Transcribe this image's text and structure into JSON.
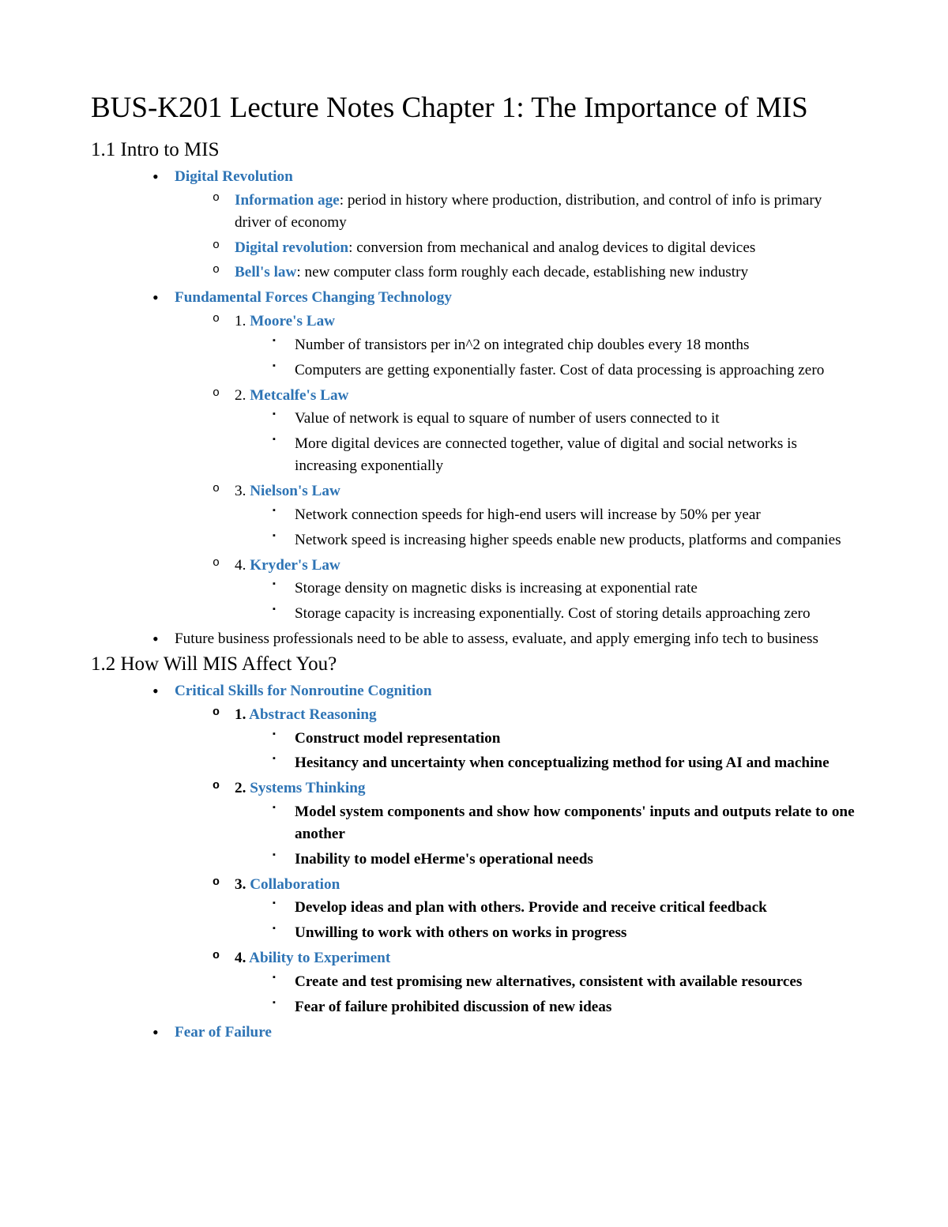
{
  "title": "BUS-K201 Lecture Notes Chapter 1: The Importance of MIS",
  "colors": {
    "term": "#2e74b5",
    "text": "#000000",
    "background": "#ffffff"
  },
  "typography": {
    "body_font": "Times New Roman",
    "h1_fontsize": 37,
    "h2_fontsize": 25,
    "body_fontsize": 19.2
  },
  "sections": [
    {
      "heading": "1.1 Intro to MIS",
      "items": [
        {
          "term": "Digital Revolution",
          "bold_children": false,
          "children": [
            {
              "term": "Information age",
              "rest": ": period in history where production, distribution, and control of info is primary driver of economy"
            },
            {
              "term": "Digital revolution",
              "rest": ": conversion from mechanical and analog devices to digital devices"
            },
            {
              "term": "Bell's law",
              "rest": ": new computer class form roughly each decade, establishing new industry"
            }
          ]
        },
        {
          "term": "Fundamental Forces Changing Technology",
          "bold_children": false,
          "children": [
            {
              "prefix": "1. ",
              "term": "Moore's Law",
              "sub": [
                "Number of transistors per in^2 on integrated chip doubles every 18 months",
                "Computers are getting exponentially faster. Cost of data processing is approaching zero"
              ]
            },
            {
              "prefix": "2. ",
              "term": "Metcalfe's Law",
              "sub": [
                "Value of network is equal to square of number of users connected to it",
                "More digital devices are connected together, value of digital and social networks is increasing exponentially"
              ]
            },
            {
              "prefix": "3. ",
              "term": "Nielson's Law",
              "sub": [
                "Network connection speeds for high-end users will increase by 50% per year",
                "Network speed is increasing higher speeds enable new products, platforms and companies"
              ]
            },
            {
              "prefix": "4. ",
              "term": "Kryder's Law",
              "sub": [
                "Storage density on magnetic disks is increasing at exponential rate",
                "Storage capacity is increasing exponentially. Cost of storing details approaching zero"
              ]
            }
          ]
        },
        {
          "plain": "Future business professionals need to be able to assess, evaluate, and apply emerging info tech to business"
        }
      ]
    },
    {
      "heading": "1.2 How Will MIS Affect You?",
      "items": [
        {
          "term": "Critical Skills for Nonroutine Cognition",
          "bold_children": true,
          "children": [
            {
              "prefix": "1. ",
              "term": "Abstract Reasoning",
              "sub": [
                "Construct model representation",
                "Hesitancy and uncertainty when conceptualizing method for using AI and machine"
              ]
            },
            {
              "prefix": "2. ",
              "term": "Systems Thinking",
              "sub": [
                "Model system components and show how components' inputs and outputs relate to one another",
                "Inability to model eHerme's operational needs"
              ]
            },
            {
              "prefix": "3. ",
              "term": "Collaboration",
              "sub": [
                "Develop ideas and plan with others. Provide and receive critical feedback",
                "Unwilling to work with others on works in progress"
              ]
            },
            {
              "prefix": "4. ",
              "term": "Ability to Experiment",
              "sub": [
                "Create and test promising new alternatives, consistent with available resources",
                "Fear of failure prohibited discussion of new ideas"
              ]
            }
          ]
        },
        {
          "term": "Fear of Failure"
        }
      ]
    }
  ]
}
